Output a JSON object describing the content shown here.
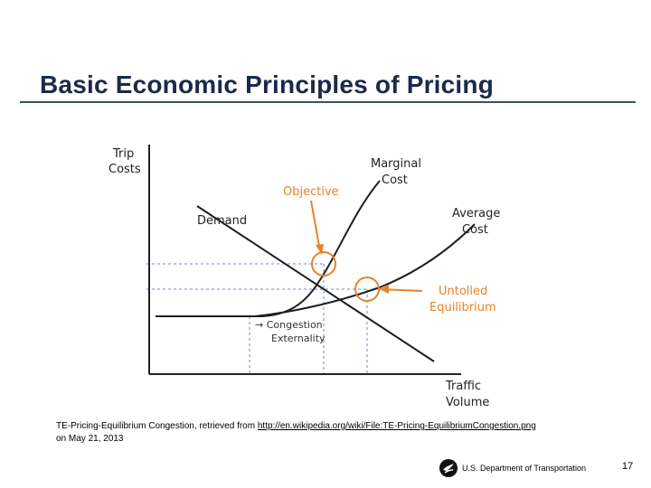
{
  "slide": {
    "title": "Basic Economic Principles of Pricing",
    "page_number": "17"
  },
  "diagram": {
    "y_axis_label_line1": "Trip",
    "y_axis_label_line2": "Costs",
    "x_axis_label_line1": "Traffic",
    "x_axis_label_line2": "Volume",
    "marginal_cost_line1": "Marginal",
    "marginal_cost_line2": "Cost",
    "average_cost_line1": "Average",
    "average_cost_line2": "Cost",
    "demand_label": "Demand",
    "objective_label": "Objective",
    "untolled_line1": "Untolled",
    "untolled_line2": "Equilibrium",
    "congestion_line1": "→ Congestion",
    "congestion_line2": "Externality",
    "colors": {
      "orange": "#e8822a",
      "axis": "#222222",
      "curve": "#1e1e1e",
      "dashed": "#6a8ccf"
    }
  },
  "caption": {
    "prefix": "TE-Pricing-Equilibrium Congestion, retrieved from ",
    "link": "http://en.wikipedia.org/wiki/File:TE-Pricing-EquilibriumCongestion.png",
    "line2": "on May 21, 2013"
  },
  "footer": {
    "org": "U.S. Department of Transportation",
    "logo_icon": "dot-eagle-logo-icon"
  }
}
